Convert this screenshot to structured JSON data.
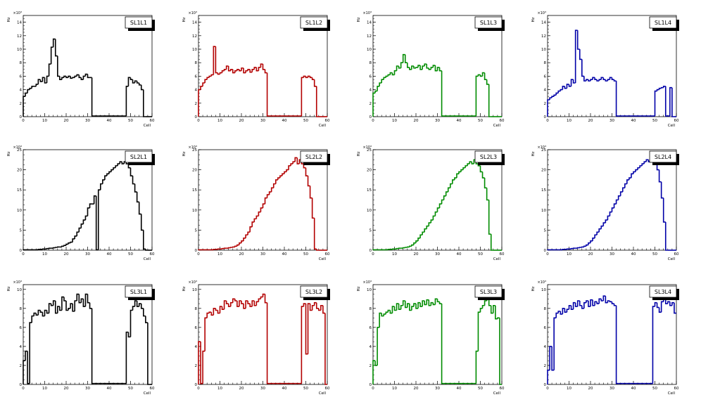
{
  "chart_data": [
    {
      "type": "histogram",
      "title": "SL1L1",
      "color": "#000000",
      "xlabel": "Cell",
      "ylabel": "Hz",
      "exponent": "×10³",
      "xlim": [
        0,
        60
      ],
      "ylim": [
        0,
        15
      ],
      "xticks": [
        "0",
        "10",
        "20",
        "30",
        "40",
        "50",
        "60"
      ],
      "yticks": [
        "0",
        "2",
        "4",
        "6",
        "8",
        "10",
        "12",
        "14"
      ],
      "values": [
        3,
        3.5,
        4,
        4.2,
        4.5,
        4.5,
        4.8,
        5.5,
        5.2,
        5.8,
        5,
        6,
        7.8,
        10.3,
        11.5,
        9,
        6,
        5.5,
        5.8,
        6,
        5.8,
        6,
        5.7,
        5.8,
        6,
        6.2,
        5.8,
        5.5,
        6,
        6.3,
        5.8,
        5.8,
        0.1,
        0.1,
        0.1,
        0.1,
        0.1,
        0.1,
        0.1,
        0.1,
        0.1,
        0.1,
        0.1,
        0.1,
        0.1,
        0.1,
        0.1,
        0.1,
        4.5,
        5.8,
        5.5,
        5,
        5.3,
        5,
        4.7,
        4,
        0,
        0,
        0,
        0
      ]
    },
    {
      "type": "histogram",
      "title": "SL1L2",
      "color": "#b30000",
      "xlabel": "Cell",
      "ylabel": "Hz",
      "exponent": "×10³",
      "xlim": [
        0,
        60
      ],
      "ylim": [
        0,
        15
      ],
      "xticks": [
        "0",
        "10",
        "20",
        "30",
        "40",
        "50",
        "60"
      ],
      "yticks": [
        "0",
        "2",
        "4",
        "6",
        "8",
        "10",
        "12",
        "14"
      ],
      "values": [
        4,
        4.5,
        5,
        5.5,
        5.8,
        6,
        6.2,
        10.4,
        6.5,
        6.3,
        6.5,
        6.8,
        7,
        7.5,
        6.8,
        7,
        6.5,
        6.8,
        7,
        6.8,
        7.2,
        6.5,
        6.8,
        7,
        6.6,
        7,
        7.3,
        6.8,
        7.3,
        7.8,
        7,
        6.5,
        0.1,
        0.1,
        0.1,
        0.1,
        0.1,
        0.1,
        0.1,
        0.1,
        0.1,
        0.1,
        0.1,
        0.1,
        0.1,
        0.1,
        0.1,
        0.1,
        5.8,
        6,
        5.8,
        6,
        5.8,
        5.5,
        4.5,
        0,
        0,
        0,
        0,
        0
      ]
    },
    {
      "type": "histogram",
      "title": "SL1L3",
      "color": "#008c00",
      "xlabel": "Cell",
      "ylabel": "Hz",
      "exponent": "×10³",
      "xlim": [
        0,
        60
      ],
      "ylim": [
        0,
        15
      ],
      "xticks": [
        "0",
        "10",
        "20",
        "30",
        "40",
        "50",
        "60"
      ],
      "yticks": [
        "0",
        "2",
        "4",
        "6",
        "8",
        "10",
        "12",
        "14"
      ],
      "values": [
        3.5,
        3.8,
        4.5,
        5,
        5.5,
        5.8,
        6,
        6.2,
        6.5,
        6.2,
        6.8,
        7.5,
        7.2,
        8,
        9.2,
        8,
        7.3,
        7,
        7.5,
        7.2,
        7.3,
        7.6,
        7,
        7.5,
        7.8,
        7.2,
        7,
        7.3,
        7.6,
        6.8,
        7.3,
        6.8,
        0.1,
        0.1,
        0.1,
        0.1,
        0.1,
        0.1,
        0.1,
        0.1,
        0.1,
        0.1,
        0.1,
        0.1,
        0.1,
        0.1,
        0.1,
        0.1,
        6,
        6.2,
        6,
        6.5,
        5.5,
        4.8,
        0,
        0,
        0,
        0,
        0,
        0
      ]
    },
    {
      "type": "histogram",
      "title": "SL1L4",
      "color": "#0000a8",
      "xlabel": "Cell",
      "ylabel": "Hz",
      "exponent": "×10³",
      "xlim": [
        0,
        60
      ],
      "ylim": [
        0,
        15
      ],
      "xticks": [
        "0",
        "10",
        "20",
        "30",
        "40",
        "50",
        "60"
      ],
      "yticks": [
        "0",
        "2",
        "4",
        "6",
        "8",
        "10",
        "12",
        "14"
      ],
      "values": [
        2.5,
        2.8,
        3,
        3.2,
        3.5,
        3.8,
        4,
        4.5,
        4.2,
        4.8,
        4.5,
        5.5,
        5,
        12.8,
        10,
        8.5,
        6,
        5.3,
        5.5,
        5.3,
        5.5,
        5.8,
        5.5,
        5.3,
        5.5,
        5.8,
        5.5,
        5.3,
        5.5,
        5.8,
        5.5,
        5.3,
        0.1,
        0.1,
        0.1,
        0.1,
        0.1,
        0.1,
        0.1,
        0.1,
        0.1,
        0.1,
        0.1,
        0.1,
        0.1,
        0.1,
        0.1,
        0.1,
        0.1,
        0.1,
        3.8,
        4,
        4.2,
        4.3,
        4.5,
        0.1,
        0.1,
        4.3,
        0,
        0
      ]
    },
    {
      "type": "histogram",
      "title": "SL2L1",
      "color": "#000000",
      "xlabel": "Cell",
      "ylabel": "Hz",
      "exponent": "×10³",
      "xlim": [
        0,
        60
      ],
      "ylim": [
        0,
        25
      ],
      "xticks": [
        "0",
        "10",
        "20",
        "30",
        "40",
        "50",
        "60"
      ],
      "yticks": [
        "0",
        "5",
        "10",
        "15",
        "20",
        "25"
      ],
      "values": [
        0.1,
        0.1,
        0.1,
        0.1,
        0.1,
        0.1,
        0.1,
        0.2,
        0.2,
        0.3,
        0.3,
        0.4,
        0.5,
        0.5,
        0.6,
        0.7,
        0.8,
        0.8,
        1,
        1.2,
        1.5,
        1.8,
        2,
        2.8,
        3.5,
        4.5,
        5.5,
        6.5,
        7.5,
        8.5,
        10.5,
        11.5,
        11.5,
        13.5,
        0.1,
        15,
        16.5,
        17.5,
        18.5,
        19,
        19.5,
        20,
        20.5,
        21,
        21.5,
        22,
        21.5,
        22,
        21.5,
        20.5,
        18.5,
        16.5,
        14.5,
        12,
        9,
        5,
        0.3,
        0,
        0,
        0
      ]
    },
    {
      "type": "histogram",
      "title": "SL2L2",
      "color": "#b30000",
      "xlabel": "Cell",
      "ylabel": "Hz",
      "exponent": "×10³",
      "xlim": [
        0,
        60
      ],
      "ylim": [
        0,
        25
      ],
      "xticks": [
        "0",
        "10",
        "20",
        "30",
        "40",
        "50",
        "60"
      ],
      "yticks": [
        "0",
        "5",
        "10",
        "15",
        "20",
        "25"
      ],
      "values": [
        0.1,
        0.1,
        0.1,
        0.1,
        0.1,
        0.1,
        0.1,
        0.2,
        0.2,
        0.3,
        0.3,
        0.4,
        0.5,
        0.5,
        0.6,
        0.7,
        0.8,
        1,
        1.3,
        1.8,
        2.3,
        3,
        3.8,
        4.5,
        5.8,
        7,
        7.8,
        8.5,
        9.5,
        10.5,
        11.5,
        13,
        13.8,
        14.5,
        15.5,
        16.5,
        17.5,
        18,
        18.5,
        19,
        19.5,
        20,
        21,
        21.5,
        22,
        23,
        21.5,
        22.5,
        21.5,
        20.5,
        18.5,
        16,
        13,
        8,
        0.3,
        0,
        0,
        0,
        0,
        0
      ]
    },
    {
      "type": "histogram",
      "title": "SL2L3",
      "color": "#008c00",
      "xlabel": "Cell",
      "ylabel": "Hz",
      "exponent": "×10³",
      "xlim": [
        0,
        60
      ],
      "ylim": [
        0,
        25
      ],
      "xticks": [
        "0",
        "10",
        "20",
        "30",
        "40",
        "50",
        "60"
      ],
      "yticks": [
        "0",
        "5",
        "10",
        "15",
        "20",
        "25"
      ],
      "values": [
        0.1,
        0.1,
        0.1,
        0.1,
        0.1,
        0.1,
        0.1,
        0.2,
        0.2,
        0.3,
        0.3,
        0.4,
        0.5,
        0.5,
        0.6,
        0.7,
        0.8,
        1,
        1.3,
        1.8,
        2.3,
        3,
        3.8,
        4.5,
        5.3,
        6,
        6.8,
        7.5,
        8.5,
        9.5,
        10.5,
        11.5,
        12.5,
        13.5,
        14.5,
        15.5,
        16.5,
        17.5,
        18,
        19,
        19.5,
        20,
        20.5,
        21,
        21.5,
        22,
        21.5,
        22.5,
        21.5,
        21,
        19.5,
        18,
        15.5,
        12.5,
        4,
        0,
        0,
        0,
        0,
        0
      ]
    },
    {
      "type": "histogram",
      "title": "SL2L4",
      "color": "#0000a8",
      "xlabel": "Cell",
      "ylabel": "Hz",
      "exponent": "×10³",
      "xlim": [
        0,
        60
      ],
      "ylim": [
        0,
        25
      ],
      "xticks": [
        "0",
        "10",
        "20",
        "30",
        "40",
        "50",
        "60"
      ],
      "yticks": [
        "0",
        "5",
        "10",
        "15",
        "20",
        "25"
      ],
      "values": [
        0.1,
        0.1,
        0.1,
        0.1,
        0.1,
        0.1,
        0.1,
        0.2,
        0.2,
        0.3,
        0.3,
        0.4,
        0.5,
        0.5,
        0.6,
        0.7,
        0.8,
        1,
        1.3,
        1.8,
        2.3,
        3,
        3.8,
        4.5,
        5.3,
        6,
        6.8,
        7.5,
        8.5,
        9.5,
        10.5,
        11.5,
        12.5,
        13.5,
        14.5,
        15.5,
        16.5,
        17.5,
        18,
        19,
        19.5,
        20,
        20.5,
        21,
        21.5,
        22,
        22.5,
        22,
        22.5,
        22,
        21.5,
        20,
        17,
        13,
        7,
        0,
        0,
        0,
        0,
        0
      ]
    },
    {
      "type": "histogram",
      "title": "SL3L1",
      "color": "#000000",
      "xlabel": "Cell",
      "ylabel": "Hz",
      "exponent": "×10³",
      "xlim": [
        0,
        60
      ],
      "ylim": [
        0,
        10.5
      ],
      "xticks": [
        "0",
        "10",
        "20",
        "30",
        "40",
        "50",
        "60"
      ],
      "yticks": [
        "0",
        "2",
        "4",
        "6",
        "8",
        "10"
      ],
      "values": [
        2.5,
        3.5,
        0.1,
        6.5,
        7.2,
        7.5,
        7.3,
        7.8,
        7.6,
        7.2,
        7.8,
        7.5,
        8.5,
        8.3,
        8.8,
        7.5,
        8.2,
        7.8,
        9.2,
        8.8,
        7.8,
        8,
        8.5,
        7.7,
        8.8,
        9.5,
        8.6,
        9,
        8.2,
        9.5,
        8.6,
        8,
        0.1,
        0.1,
        0.1,
        0.1,
        0.1,
        0.1,
        0.1,
        0.1,
        0.1,
        0.1,
        0.1,
        0.1,
        0.1,
        0.1,
        0.1,
        0.1,
        5.5,
        5,
        7.8,
        8.2,
        8.8,
        8.2,
        8.5,
        8,
        7.2,
        6.5,
        0,
        0
      ]
    },
    {
      "type": "histogram",
      "title": "SL3L2",
      "color": "#b30000",
      "xlabel": "Cell",
      "ylabel": "Hz",
      "exponent": "×10³",
      "xlim": [
        0,
        60
      ],
      "ylim": [
        0,
        10.5
      ],
      "xticks": [
        "0",
        "10",
        "20",
        "30",
        "40",
        "50",
        "60"
      ],
      "yticks": [
        "0",
        "2",
        "4",
        "6",
        "8",
        "10"
      ],
      "values": [
        4.5,
        0.1,
        3.5,
        7,
        7.5,
        7.6,
        7.3,
        8,
        7.8,
        7.5,
        8.2,
        7.9,
        8.8,
        8.5,
        8.2,
        8.6,
        9,
        8.8,
        8.2,
        8.8,
        8.5,
        8,
        8.8,
        8.5,
        8.2,
        8.8,
        8.3,
        8.7,
        9,
        9.2,
        9.5,
        8.6,
        0.1,
        0.1,
        0.1,
        0.1,
        0.1,
        0.1,
        0.1,
        0.1,
        0.1,
        0.1,
        0.1,
        0.1,
        0.1,
        0.1,
        0.1,
        0.1,
        8.2,
        8.5,
        3.2,
        8.5,
        7.8,
        8.3,
        8.6,
        8,
        7.8,
        8.3,
        7.5,
        0
      ]
    },
    {
      "type": "histogram",
      "title": "SL3L3",
      "color": "#008c00",
      "xlabel": "Cell",
      "ylabel": "Hz",
      "exponent": "×10³",
      "xlim": [
        0,
        60
      ],
      "ylim": [
        0,
        10.5
      ],
      "xticks": [
        "0",
        "10",
        "20",
        "30",
        "40",
        "50",
        "60"
      ],
      "yticks": [
        "0",
        "2",
        "4",
        "6",
        "8",
        "10"
      ],
      "values": [
        2.5,
        2,
        6,
        7.5,
        7.2,
        7.4,
        7.6,
        7.8,
        7.5,
        8.2,
        7.8,
        8.5,
        7.9,
        8.3,
        8.8,
        8.1,
        8.5,
        7.8,
        8.2,
        8.5,
        8,
        8.6,
        8.2,
        8.8,
        8.4,
        8.9,
        8.3,
        8.6,
        8.4,
        9,
        8.7,
        8.5,
        0.1,
        0.1,
        0.1,
        0.1,
        0.1,
        0.1,
        0.1,
        0.1,
        0.1,
        0.1,
        0.1,
        0.1,
        0.1,
        0.1,
        0.1,
        0.1,
        3.5,
        7.6,
        8,
        8.3,
        8.8,
        9.1,
        8.3,
        7.5,
        8.3,
        6.9,
        7,
        0
      ]
    },
    {
      "type": "histogram",
      "title": "SL3L4",
      "color": "#0000a8",
      "xlabel": "Cell",
      "ylabel": "Hz",
      "exponent": "×10³",
      "xlim": [
        0,
        60
      ],
      "ylim": [
        0,
        10.5
      ],
      "xticks": [
        "0",
        "10",
        "20",
        "30",
        "40",
        "50",
        "60"
      ],
      "yticks": [
        "0",
        "2",
        "4",
        "6",
        "8",
        "10"
      ],
      "values": [
        1.5,
        4,
        1.5,
        7,
        7.5,
        7.7,
        7.4,
        8,
        7.6,
        7.9,
        8.3,
        7.9,
        8.6,
        8.2,
        8.8,
        8.3,
        8,
        8.6,
        8.8,
        8.2,
        8.9,
        8.3,
        8.7,
        8.5,
        9,
        8.8,
        9.3,
        8.6,
        8.8,
        8.7,
        8.5,
        8.3,
        0.1,
        0.1,
        0.1,
        0.1,
        0.1,
        0.1,
        0.1,
        0.1,
        0.1,
        0.1,
        0.1,
        0.1,
        0.1,
        0.1,
        0.1,
        0.1,
        0.1,
        8.2,
        8.6,
        8.1,
        7.6,
        8.7,
        9.1,
        8.5,
        8.7,
        8.3,
        8.6,
        7.5
      ]
    }
  ]
}
